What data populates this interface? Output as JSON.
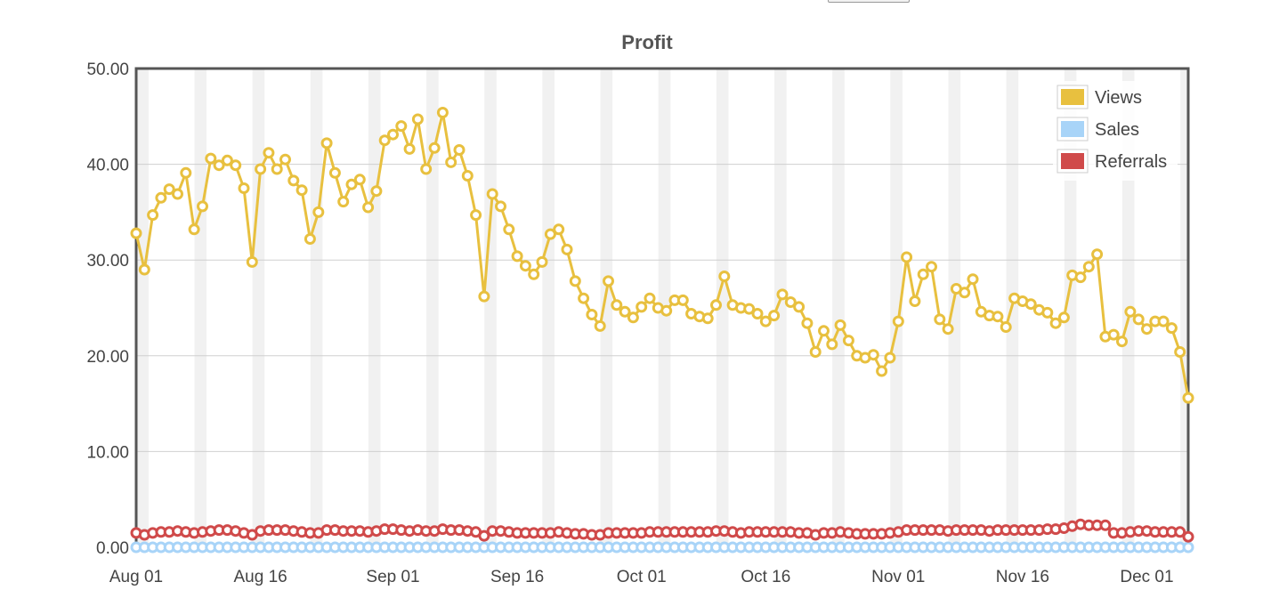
{
  "chart_data": {
    "type": "line",
    "title": "Profit",
    "xlabel": "",
    "ylabel": "",
    "x_start": "Aug 01",
    "x_end": "Dec 05",
    "x_ticks": [
      {
        "label": "Aug 01",
        "day": 0
      },
      {
        "label": "Aug 16",
        "day": 15
      },
      {
        "label": "Sep 01",
        "day": 31
      },
      {
        "label": "Sep 16",
        "day": 46
      },
      {
        "label": "Oct 01",
        "day": 61
      },
      {
        "label": "Oct 16",
        "day": 76
      },
      {
        "label": "Nov 01",
        "day": 92
      },
      {
        "label": "Nov 16",
        "day": 107
      },
      {
        "label": "Dec 01",
        "day": 122
      }
    ],
    "y_ticks": [
      "0.00",
      "10.00",
      "20.00",
      "30.00",
      "40.00",
      "50.00"
    ],
    "ylim": [
      0,
      50
    ],
    "grid": "horizontal",
    "weekend_bands": true,
    "legend_position": "top-right",
    "series": [
      {
        "name": "Views",
        "color": "#e8c03f",
        "values": [
          32.8,
          29.0,
          34.7,
          36.5,
          37.4,
          36.9,
          39.1,
          33.2,
          35.6,
          40.6,
          39.9,
          40.4,
          39.9,
          37.5,
          29.8,
          39.5,
          41.2,
          39.5,
          40.5,
          38.3,
          37.3,
          32.2,
          35.0,
          42.2,
          39.1,
          36.1,
          37.9,
          38.4,
          35.5,
          37.2,
          42.5,
          43.1,
          44.0,
          41.6,
          44.7,
          39.5,
          41.7,
          45.4,
          40.2,
          41.5,
          38.8,
          34.7,
          26.2,
          36.9,
          35.6,
          33.2,
          30.4,
          29.4,
          28.5,
          29.8,
          32.7,
          33.2,
          31.1,
          27.8,
          26.0,
          24.3,
          23.1,
          27.8,
          25.3,
          24.6,
          24.0,
          25.1,
          26.0,
          25.0,
          24.7,
          25.8,
          25.8,
          24.4,
          24.1,
          23.9,
          25.3,
          28.3,
          25.3,
          25.0,
          24.9,
          24.4,
          23.6,
          24.2,
          26.4,
          25.6,
          25.1,
          23.4,
          20.4,
          22.6,
          21.2,
          23.2,
          21.6,
          20.0,
          19.8,
          20.1,
          18.4,
          19.8,
          23.6,
          30.3,
          25.7,
          28.5,
          29.3,
          23.8,
          22.8,
          27.0,
          26.6,
          28.0,
          24.6,
          24.2,
          24.1,
          23.0,
          26.0,
          25.7,
          25.4,
          24.8,
          24.5,
          23.4,
          24.0,
          28.4,
          28.2,
          29.3,
          30.6,
          22.0,
          22.2,
          21.5,
          24.6,
          23.8,
          22.8,
          23.6,
          23.6,
          22.9,
          20.4,
          15.6
        ]
      },
      {
        "name": "Sales",
        "color": "#a8d4f8",
        "values": [
          0.0,
          0.0,
          0.0,
          0.0,
          0.0,
          0.0,
          0.0,
          0.0,
          0.0,
          0.0,
          0.0,
          0.0,
          0.0,
          0.0,
          0.0,
          0.0,
          0.0,
          0.0,
          0.0,
          0.0,
          0.0,
          0.0,
          0.0,
          0.0,
          0.0,
          0.0,
          0.0,
          0.0,
          0.0,
          0.0,
          0.0,
          0.0,
          0.0,
          0.0,
          0.0,
          0.0,
          0.0,
          0.0,
          0.0,
          0.0,
          0.0,
          0.0,
          0.0,
          0.0,
          0.0,
          0.0,
          0.0,
          0.0,
          0.0,
          0.0,
          0.0,
          0.0,
          0.0,
          0.0,
          0.0,
          0.0,
          0.0,
          0.0,
          0.0,
          0.0,
          0.0,
          0.0,
          0.0,
          0.0,
          0.0,
          0.0,
          0.0,
          0.0,
          0.0,
          0.0,
          0.0,
          0.0,
          0.0,
          0.0,
          0.0,
          0.0,
          0.0,
          0.0,
          0.0,
          0.0,
          0.0,
          0.0,
          0.0,
          0.0,
          0.0,
          0.0,
          0.0,
          0.0,
          0.0,
          0.0,
          0.0,
          0.0,
          0.0,
          0.0,
          0.0,
          0.0,
          0.0,
          0.0,
          0.0,
          0.0,
          0.0,
          0.0,
          0.0,
          0.0,
          0.0,
          0.0,
          0.0,
          0.0,
          0.0,
          0.0,
          0.0,
          0.0,
          0.0,
          0.0,
          0.0,
          0.0,
          0.0,
          0.0,
          0.0,
          0.0,
          0.0,
          0.0,
          0.0,
          0.0,
          0.0,
          0.0,
          0.0,
          0.0
        ]
      },
      {
        "name": "Referrals",
        "color": "#d04a4a",
        "values": [
          1.5,
          1.3,
          1.5,
          1.6,
          1.6,
          1.7,
          1.6,
          1.5,
          1.6,
          1.7,
          1.8,
          1.8,
          1.7,
          1.5,
          1.3,
          1.7,
          1.8,
          1.8,
          1.8,
          1.7,
          1.6,
          1.5,
          1.5,
          1.8,
          1.8,
          1.7,
          1.7,
          1.7,
          1.6,
          1.7,
          1.9,
          1.9,
          1.8,
          1.7,
          1.8,
          1.7,
          1.7,
          1.9,
          1.8,
          1.8,
          1.7,
          1.6,
          1.2,
          1.7,
          1.7,
          1.6,
          1.5,
          1.5,
          1.5,
          1.5,
          1.5,
          1.6,
          1.5,
          1.4,
          1.4,
          1.3,
          1.3,
          1.5,
          1.5,
          1.5,
          1.5,
          1.5,
          1.6,
          1.6,
          1.6,
          1.6,
          1.6,
          1.6,
          1.6,
          1.6,
          1.7,
          1.7,
          1.6,
          1.5,
          1.6,
          1.6,
          1.6,
          1.6,
          1.6,
          1.6,
          1.5,
          1.5,
          1.3,
          1.5,
          1.5,
          1.6,
          1.5,
          1.4,
          1.4,
          1.4,
          1.4,
          1.5,
          1.6,
          1.8,
          1.8,
          1.8,
          1.8,
          1.8,
          1.7,
          1.8,
          1.8,
          1.8,
          1.8,
          1.7,
          1.8,
          1.8,
          1.8,
          1.8,
          1.8,
          1.8,
          1.9,
          1.9,
          2.0,
          2.2,
          2.4,
          2.3,
          2.3,
          2.3,
          1.5,
          1.5,
          1.6,
          1.7,
          1.7,
          1.6,
          1.6,
          1.6,
          1.6,
          1.1
        ]
      }
    ]
  }
}
